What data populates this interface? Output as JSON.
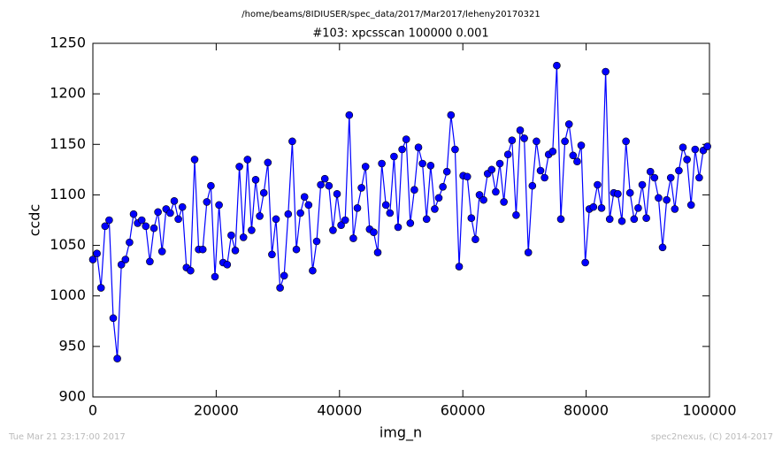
{
  "chart_data": {
    "type": "line",
    "header": "/home/beams/8IDIUSER/spec_data/2017/Mar2017/leheny20170321",
    "title": "#103: xpcsscan 100000 0.001",
    "x_label": "img_n",
    "y_label": "ccdc",
    "footer_left": "Tue Mar 21 23:17:00 2017",
    "footer_right": "spec2nexus, (C) 2014-2017",
    "xlim": [
      0,
      100000
    ],
    "ylim": [
      900,
      1250
    ],
    "xticks": [
      0,
      20000,
      40000,
      60000,
      80000,
      100000
    ],
    "yticks": [
      900,
      950,
      1000,
      1050,
      1100,
      1150,
      1200,
      1250
    ],
    "x": [
      0,
      660,
      1320,
      1980,
      2640,
      3300,
      3960,
      4620,
      5280,
      5940,
      6600,
      7260,
      7920,
      8580,
      9240,
      9900,
      10560,
      11220,
      11880,
      12540,
      13200,
      13860,
      14520,
      15180,
      15840,
      16500,
      17160,
      17820,
      18480,
      19140,
      19800,
      20460,
      21120,
      21780,
      22440,
      23100,
      23760,
      24420,
      25080,
      25740,
      26400,
      27060,
      27720,
      28380,
      29040,
      29700,
      30360,
      31020,
      31680,
      32340,
      33000,
      33660,
      34320,
      34980,
      35640,
      36300,
      36960,
      37620,
      38280,
      38940,
      39600,
      40260,
      40920,
      41580,
      42240,
      42900,
      43560,
      44220,
      44880,
      45540,
      46200,
      46860,
      47520,
      48180,
      48840,
      49500,
      50160,
      50820,
      51480,
      52140,
      52800,
      53460,
      54120,
      54780,
      55440,
      56100,
      56760,
      57420,
      58080,
      58740,
      59400,
      60060,
      60720,
      61380,
      62040,
      62700,
      63360,
      64020,
      64680,
      65340,
      66000,
      66660,
      67320,
      67980,
      68640,
      69300,
      69960,
      70620,
      71280,
      71940,
      72600,
      73260,
      73920,
      74580,
      75240,
      75900,
      76560,
      77220,
      77880,
      78540,
      79200,
      79860,
      80520,
      81180,
      81840,
      82500,
      83160,
      83820,
      84480,
      85140,
      85800,
      86460,
      87120,
      87780,
      88440,
      89100,
      89760,
      90420,
      91080,
      91740,
      92400,
      93060,
      93720,
      94380,
      95040,
      95700,
      96360,
      97020,
      97680,
      98340,
      99000,
      99660
    ],
    "series": [
      {
        "color": "#0000ff",
        "values": [
          1036,
          1042,
          1008,
          1069,
          1075,
          978,
          938,
          1031,
          1036,
          1053,
          1081,
          1072,
          1075,
          1069,
          1034,
          1067,
          1083,
          1044,
          1086,
          1082,
          1094,
          1076,
          1088,
          1028,
          1025,
          1135,
          1046,
          1046,
          1093,
          1109,
          1019,
          1090,
          1033,
          1031,
          1060,
          1045,
          1128,
          1058,
          1135,
          1065,
          1115,
          1079,
          1102,
          1132,
          1041,
          1076,
          1008,
          1020,
          1081,
          1153,
          1046,
          1082,
          1098,
          1090,
          1025,
          1054,
          1110,
          1116,
          1109,
          1065,
          1101,
          1070,
          1075,
          1179,
          1057,
          1087,
          1107,
          1128,
          1066,
          1063,
          1043,
          1131,
          1090,
          1082,
          1138,
          1068,
          1145,
          1155,
          1072,
          1105,
          1147,
          1131,
          1076,
          1129,
          1086,
          1097,
          1108,
          1123,
          1179,
          1145,
          1029,
          1119,
          1118,
          1077,
          1056,
          1100,
          1095,
          1121,
          1125,
          1103,
          1131,
          1093,
          1140,
          1154,
          1080,
          1164,
          1156,
          1043,
          1109,
          1153,
          1124,
          1117,
          1140,
          1143,
          1228,
          1076,
          1153,
          1170,
          1139,
          1133,
          1149,
          1033,
          1086,
          1088,
          1110,
          1087,
          1222,
          1076,
          1102,
          1101,
          1074,
          1153,
          1102,
          1076,
          1087,
          1110,
          1077,
          1123,
          1117,
          1097,
          1048,
          1095,
          1117,
          1086,
          1124,
          1147,
          1135,
          1090,
          1145,
          1117,
          1144,
          1148
        ]
      }
    ]
  }
}
